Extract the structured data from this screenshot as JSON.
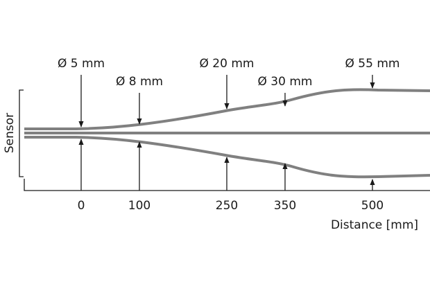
{
  "sensor_label": "Sensor",
  "axis_label": "Distance  [mm]",
  "markers": [
    {
      "distance": 0,
      "diameter": "Ø 5 mm"
    },
    {
      "distance": 100,
      "diameter": "Ø 8 mm"
    },
    {
      "distance": 250,
      "diameter": "Ø 20 mm"
    },
    {
      "distance": 350,
      "diameter": "Ø 30 mm"
    },
    {
      "distance": 500,
      "diameter": "Ø 55 mm"
    }
  ]
}
